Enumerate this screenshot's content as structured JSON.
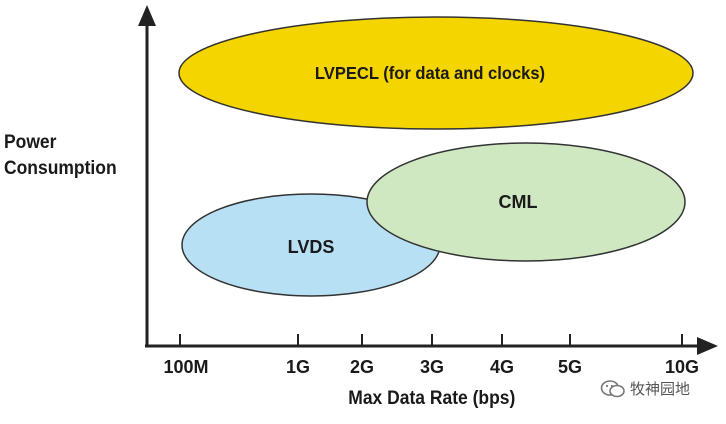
{
  "y_axis_label": [
    "Power",
    "Consumption"
  ],
  "x_axis_label": "Max Data Rate (bps)",
  "x_ticks": [
    "100M",
    "1G",
    "2G",
    "3G",
    "4G",
    "5G",
    "10G"
  ],
  "regions": [
    {
      "id": "lvpecl",
      "label": "LVPECL (for data and clocks)",
      "fill": "#f5d500",
      "stroke": "#333333"
    },
    {
      "id": "cml",
      "label": "CML",
      "fill": "#cfe8c2",
      "stroke": "#333333"
    },
    {
      "id": "lvds",
      "label": "LVDS",
      "fill": "#b8e0f5",
      "stroke": "#333333"
    }
  ],
  "watermark": {
    "text": "牧神园地",
    "icon": "wechat-icon"
  }
}
